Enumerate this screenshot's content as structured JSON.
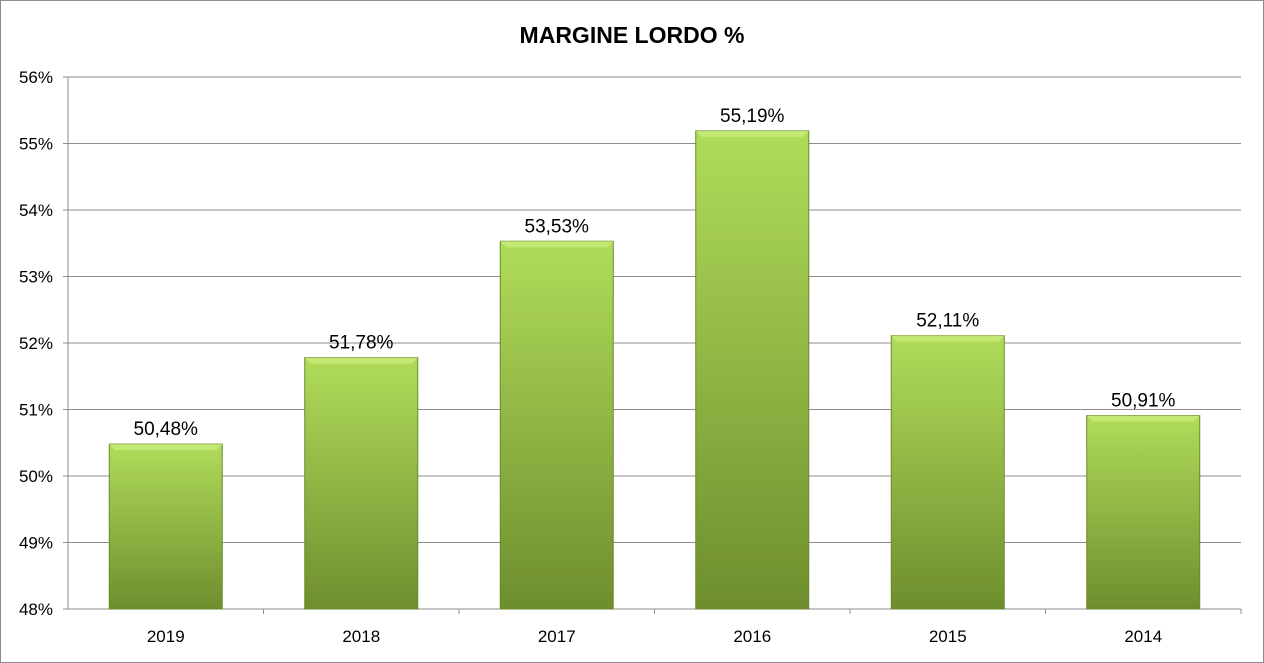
{
  "chart_data": {
    "type": "bar",
    "title": "MARGINE LORDO %",
    "categories": [
      "2019",
      "2018",
      "2017",
      "2016",
      "2015",
      "2014"
    ],
    "values": [
      50.48,
      51.78,
      53.53,
      55.19,
      52.11,
      50.91
    ],
    "data_labels": [
      "50,48%",
      "51,78%",
      "53,53%",
      "55,19%",
      "52,11%",
      "50,91%"
    ],
    "ylim": [
      48,
      56
    ],
    "yticks": [
      48,
      49,
      50,
      51,
      52,
      53,
      54,
      55,
      56
    ],
    "ytick_labels": [
      "48%",
      "49%",
      "50%",
      "51%",
      "52%",
      "53%",
      "54%",
      "55%",
      "56%"
    ],
    "xlabel": "",
    "ylabel": "",
    "grid": true,
    "legend": "none",
    "colors": {
      "bar_top": "#b0dc5a",
      "bar_bottom": "#6e8e2e",
      "grid": "#8c8c8c"
    }
  }
}
